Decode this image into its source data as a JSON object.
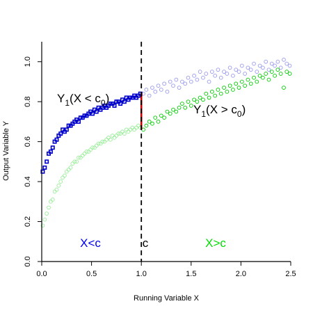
{
  "chart_data": {
    "type": "scatter",
    "xlabel": "Running Variable X",
    "ylabel": "Output Variable Y",
    "xlim": [
      0,
      2.5
    ],
    "ylim": [
      0,
      1.1
    ],
    "x_ticks": [
      "0.0",
      "0.5",
      "1.0",
      "1.5",
      "2.0",
      "2.5"
    ],
    "y_ticks": [
      "0.0",
      "0.2",
      "0.4",
      "0.6",
      "0.8",
      "1.0"
    ],
    "grid": false,
    "cutoff": 1.0,
    "jump_at_cutoff": [
      0.66,
      0.84
    ],
    "annotations": {
      "left_label_main": "Y",
      "left_label_sub": "1",
      "left_label_cond": "(X < c",
      "left_label_cond_sub": "0",
      "left_label_close": ")",
      "right_label_main": "Y",
      "right_label_sub": "1",
      "right_label_cond": "(X > c",
      "right_label_cond_sub": "0",
      "right_label_close": ")",
      "region_left": "X<c",
      "region_cutoff": "c",
      "region_right": "X>c"
    },
    "colors": {
      "treated_observed": "#0000cc",
      "treated_counterfactual": "#9999ee",
      "control_observed": "#00cc00",
      "control_counterfactual": "#99ee99",
      "jump": "#cc0000",
      "cutoff_line": "#000000"
    },
    "series": [
      {
        "style": "blue filled squares (observed, X<c)",
        "points": [
          [
            0.01,
            0.45
          ],
          [
            0.03,
            0.47
          ],
          [
            0.05,
            0.5
          ],
          [
            0.07,
            0.54
          ],
          [
            0.09,
            0.55
          ],
          [
            0.11,
            0.57
          ],
          [
            0.13,
            0.6
          ],
          [
            0.15,
            0.61
          ],
          [
            0.17,
            0.63
          ],
          [
            0.19,
            0.64
          ],
          [
            0.21,
            0.66
          ],
          [
            0.23,
            0.65
          ],
          [
            0.25,
            0.66
          ],
          [
            0.27,
            0.68
          ],
          [
            0.29,
            0.68
          ],
          [
            0.31,
            0.69
          ],
          [
            0.33,
            0.7
          ],
          [
            0.35,
            0.71
          ],
          [
            0.37,
            0.7
          ],
          [
            0.39,
            0.72
          ],
          [
            0.41,
            0.72
          ],
          [
            0.43,
            0.73
          ],
          [
            0.45,
            0.73
          ],
          [
            0.47,
            0.74
          ],
          [
            0.49,
            0.75
          ],
          [
            0.51,
            0.74
          ],
          [
            0.53,
            0.76
          ],
          [
            0.55,
            0.75
          ],
          [
            0.57,
            0.77
          ],
          [
            0.59,
            0.76
          ],
          [
            0.61,
            0.77
          ],
          [
            0.63,
            0.78
          ],
          [
            0.65,
            0.77
          ],
          [
            0.67,
            0.78
          ],
          [
            0.69,
            0.79
          ],
          [
            0.71,
            0.79
          ],
          [
            0.73,
            0.78
          ],
          [
            0.75,
            0.8
          ],
          [
            0.77,
            0.8
          ],
          [
            0.79,
            0.79
          ],
          [
            0.81,
            0.81
          ],
          [
            0.83,
            0.8
          ],
          [
            0.85,
            0.82
          ],
          [
            0.87,
            0.81
          ],
          [
            0.89,
            0.82
          ],
          [
            0.91,
            0.82
          ],
          [
            0.93,
            0.83
          ],
          [
            0.95,
            0.82
          ],
          [
            0.97,
            0.83
          ],
          [
            0.99,
            0.84
          ]
        ]
      },
      {
        "style": "light blue open circles (counterfactual, X>c)",
        "points": [
          [
            1.02,
            0.84
          ],
          [
            1.05,
            0.86
          ],
          [
            1.08,
            0.83
          ],
          [
            1.11,
            0.87
          ],
          [
            1.14,
            0.85
          ],
          [
            1.17,
            0.88
          ],
          [
            1.2,
            0.86
          ],
          [
            1.23,
            0.89
          ],
          [
            1.26,
            0.85
          ],
          [
            1.29,
            0.9
          ],
          [
            1.32,
            0.88
          ],
          [
            1.35,
            0.91
          ],
          [
            1.38,
            0.87
          ],
          [
            1.41,
            0.9
          ],
          [
            1.44,
            0.89
          ],
          [
            1.47,
            0.92
          ],
          [
            1.5,
            0.9
          ],
          [
            1.53,
            0.93
          ],
          [
            1.56,
            0.91
          ],
          [
            1.59,
            0.95
          ],
          [
            1.62,
            0.92
          ],
          [
            1.65,
            0.94
          ],
          [
            1.68,
            0.9
          ],
          [
            1.71,
            0.95
          ],
          [
            1.74,
            0.93
          ],
          [
            1.77,
            0.96
          ],
          [
            1.8,
            0.92
          ],
          [
            1.83,
            0.95
          ],
          [
            1.86,
            0.94
          ],
          [
            1.89,
            0.97
          ],
          [
            1.92,
            0.93
          ],
          [
            1.95,
            0.96
          ],
          [
            1.98,
            0.95
          ],
          [
            2.01,
            0.98
          ],
          [
            2.04,
            0.94
          ],
          [
            2.07,
            0.97
          ],
          [
            2.1,
            0.96
          ],
          [
            2.13,
            0.99
          ],
          [
            2.16,
            0.95
          ],
          [
            2.19,
            0.98
          ],
          [
            2.22,
            0.97
          ],
          [
            2.25,
            1.0
          ],
          [
            2.28,
            0.96
          ],
          [
            2.31,
            0.99
          ],
          [
            2.34,
            0.98
          ],
          [
            2.37,
            1.0
          ],
          [
            2.4,
            0.97
          ],
          [
            2.43,
            1.01
          ],
          [
            2.46,
            0.99
          ],
          [
            2.49,
            0.98
          ]
        ]
      },
      {
        "style": "light green open circles (counterfactual, X<c)",
        "points": [
          [
            0.01,
            0.18
          ],
          [
            0.03,
            0.21
          ],
          [
            0.05,
            0.24
          ],
          [
            0.07,
            0.27
          ],
          [
            0.09,
            0.3
          ],
          [
            0.11,
            0.31
          ],
          [
            0.13,
            0.35
          ],
          [
            0.15,
            0.36
          ],
          [
            0.17,
            0.38
          ],
          [
            0.19,
            0.4
          ],
          [
            0.21,
            0.42
          ],
          [
            0.23,
            0.43
          ],
          [
            0.25,
            0.45
          ],
          [
            0.27,
            0.46
          ],
          [
            0.29,
            0.47
          ],
          [
            0.31,
            0.49
          ],
          [
            0.33,
            0.5
          ],
          [
            0.35,
            0.5
          ],
          [
            0.37,
            0.52
          ],
          [
            0.39,
            0.52
          ],
          [
            0.41,
            0.53
          ],
          [
            0.43,
            0.54
          ],
          [
            0.45,
            0.55
          ],
          [
            0.47,
            0.55
          ],
          [
            0.49,
            0.56
          ],
          [
            0.51,
            0.57
          ],
          [
            0.53,
            0.57
          ],
          [
            0.55,
            0.58
          ],
          [
            0.57,
            0.59
          ],
          [
            0.59,
            0.59
          ],
          [
            0.61,
            0.6
          ],
          [
            0.63,
            0.6
          ],
          [
            0.65,
            0.61
          ],
          [
            0.67,
            0.62
          ],
          [
            0.69,
            0.61
          ],
          [
            0.71,
            0.63
          ],
          [
            0.73,
            0.62
          ],
          [
            0.75,
            0.63
          ],
          [
            0.77,
            0.64
          ],
          [
            0.79,
            0.64
          ],
          [
            0.81,
            0.65
          ],
          [
            0.83,
            0.64
          ],
          [
            0.85,
            0.66
          ],
          [
            0.87,
            0.65
          ],
          [
            0.89,
            0.66
          ],
          [
            0.91,
            0.67
          ],
          [
            0.93,
            0.66
          ],
          [
            0.95,
            0.67
          ],
          [
            0.97,
            0.68
          ],
          [
            0.99,
            0.67
          ]
        ]
      },
      {
        "style": "green open circles (observed, X>c)",
        "points": [
          [
            1.02,
            0.66
          ],
          [
            1.05,
            0.68
          ],
          [
            1.08,
            0.7
          ],
          [
            1.11,
            0.69
          ],
          [
            1.14,
            0.72
          ],
          [
            1.17,
            0.7
          ],
          [
            1.2,
            0.73
          ],
          [
            1.23,
            0.72
          ],
          [
            1.26,
            0.75
          ],
          [
            1.29,
            0.74
          ],
          [
            1.32,
            0.76
          ],
          [
            1.35,
            0.75
          ],
          [
            1.38,
            0.77
          ],
          [
            1.41,
            0.79
          ],
          [
            1.44,
            0.77
          ],
          [
            1.47,
            0.8
          ],
          [
            1.5,
            0.78
          ],
          [
            1.53,
            0.81
          ],
          [
            1.56,
            0.8
          ],
          [
            1.59,
            0.82
          ],
          [
            1.62,
            0.81
          ],
          [
            1.65,
            0.84
          ],
          [
            1.68,
            0.82
          ],
          [
            1.71,
            0.85
          ],
          [
            1.74,
            0.83
          ],
          [
            1.77,
            0.86
          ],
          [
            1.8,
            0.84
          ],
          [
            1.83,
            0.87
          ],
          [
            1.86,
            0.85
          ],
          [
            1.89,
            0.88
          ],
          [
            1.92,
            0.86
          ],
          [
            1.95,
            0.89
          ],
          [
            1.98,
            0.87
          ],
          [
            2.01,
            0.9
          ],
          [
            2.04,
            0.88
          ],
          [
            2.07,
            0.91
          ],
          [
            2.1,
            0.89
          ],
          [
            2.13,
            0.92
          ],
          [
            2.16,
            0.9
          ],
          [
            2.19,
            0.93
          ],
          [
            2.22,
            0.92
          ],
          [
            2.25,
            0.94
          ],
          [
            2.28,
            0.91
          ],
          [
            2.31,
            0.95
          ],
          [
            2.34,
            0.93
          ],
          [
            2.37,
            0.96
          ],
          [
            2.4,
            0.94
          ],
          [
            2.43,
            0.87
          ],
          [
            2.46,
            0.95
          ],
          [
            2.49,
            0.94
          ]
        ]
      }
    ]
  }
}
